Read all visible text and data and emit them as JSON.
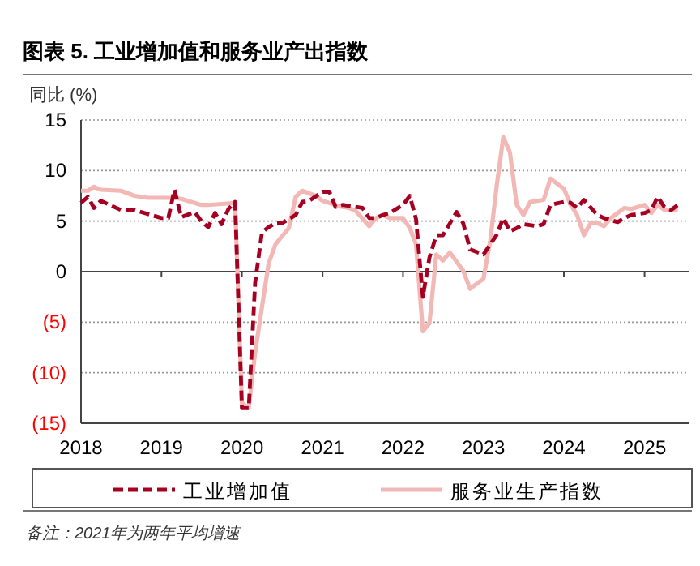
{
  "chart_data": {
    "type": "line",
    "title": "图表 5. 工业增加值和服务业产出指数",
    "ylabel": "同比 (%)",
    "annotations": [
      "备注：2021年为两年平均增速"
    ],
    "xlim": [
      "2018-01-01",
      "2025-07-20"
    ],
    "xticks": [
      {
        "value": "2018-01-01",
        "label": "2018"
      },
      {
        "value": "2019-01-01",
        "label": "2019"
      },
      {
        "value": "2020-01-01",
        "label": "2020"
      },
      {
        "value": "2021-01-01",
        "label": "2021"
      },
      {
        "value": "2022-01-01",
        "label": "2022"
      },
      {
        "value": "2023-01-01",
        "label": "2023"
      },
      {
        "value": "2024-01-01",
        "label": "2024"
      },
      {
        "value": "2025-01-01",
        "label": "2025"
      }
    ],
    "ylim": [
      -15,
      15
    ],
    "yticks": [
      15,
      10,
      5,
      0,
      {
        "value": -5,
        "label": "(5)"
      },
      {
        "value": -10,
        "label": "(10)"
      },
      {
        "value": -15,
        "label": "(15)"
      }
    ],
    "grid": "y",
    "legend": "bottom",
    "series": [
      {
        "name": "工业增加值",
        "color": "#a50021",
        "line_style": "dashed",
        "x": [
          "2018-01",
          "2018-02",
          "2018-03",
          "2018-04",
          "2018-07",
          "2018-09",
          "2018-11",
          "2019-01",
          "2019-02",
          "2019-03",
          "2019-04",
          "2019-06",
          "2019-07",
          "2019-08",
          "2019-09",
          "2019-10",
          "2019-11",
          "2019-12",
          "2020-01",
          "2020-02",
          "2020-03",
          "2020-04",
          "2020-05",
          "2020-06",
          "2020-07",
          "2020-09",
          "2020-10",
          "2020-11",
          "2021-01",
          "2021-02",
          "2021-03",
          "2021-04",
          "2021-06",
          "2021-07",
          "2021-08",
          "2021-09",
          "2021-10",
          "2021-11",
          "2022-01",
          "2022-02",
          "2022-03",
          "2022-04",
          "2022-05",
          "2022-06",
          "2022-07",
          "2022-09",
          "2022-10",
          "2022-11",
          "2023-01",
          "2023-02",
          "2023-03",
          "2023-04",
          "2023-05",
          "2023-06",
          "2023-07",
          "2023-09",
          "2023-10",
          "2023-11",
          "2024-01",
          "2024-02",
          "2024-03",
          "2024-04",
          "2024-06",
          "2024-07",
          "2024-08",
          "2024-09",
          "2024-10",
          "2024-11",
          "2025-01",
          "2025-02",
          "2025-03",
          "2025-04",
          "2025-05",
          "2025-06"
        ],
        "values": [
          6.8,
          7.4,
          6.3,
          7.0,
          6.1,
          6.1,
          5.7,
          5.3,
          5.3,
          8.1,
          5.4,
          5.9,
          5.0,
          4.4,
          5.8,
          4.7,
          6.2,
          6.9,
          -13.5,
          -13.5,
          -1.1,
          3.9,
          4.4,
          4.8,
          4.8,
          5.6,
          6.9,
          7.0,
          7.9,
          7.9,
          6.4,
          6.6,
          6.4,
          6.3,
          5.3,
          5.3,
          5.6,
          5.8,
          6.6,
          7.5,
          5.2,
          -2.5,
          1.4,
          3.6,
          3.6,
          5.9,
          4.8,
          2.2,
          1.7,
          2.7,
          3.6,
          5.3,
          4.0,
          4.3,
          4.7,
          4.5,
          4.7,
          6.6,
          6.9,
          6.8,
          6.3,
          7.1,
          5.6,
          5.3,
          5.1,
          4.9,
          5.3,
          5.6,
          5.8,
          6.1,
          7.4,
          6.4,
          6.1,
          6.6
        ]
      },
      {
        "name": "服务业生产指数",
        "color": "#f2b8b5",
        "line_style": "solid",
        "x": [
          "2018-01",
          "2018-02",
          "2018-03",
          "2018-04",
          "2018-07",
          "2018-09",
          "2018-11",
          "2019-01",
          "2019-03",
          "2019-04",
          "2019-05",
          "2019-07",
          "2019-08",
          "2019-10",
          "2019-12",
          "2020-01",
          "2020-02",
          "2020-03",
          "2020-05",
          "2020-06",
          "2020-07",
          "2020-08",
          "2020-09",
          "2020-10",
          "2020-12",
          "2021-01",
          "2021-02",
          "2021-03",
          "2021-04",
          "2021-05",
          "2021-06",
          "2021-08",
          "2021-09",
          "2021-10",
          "2021-11",
          "2022-01",
          "2022-02",
          "2022-03",
          "2022-04",
          "2022-05",
          "2022-06",
          "2022-07",
          "2022-08",
          "2022-10",
          "2022-11",
          "2023-01",
          "2023-02",
          "2023-03",
          "2023-04",
          "2023-05",
          "2023-06",
          "2023-07",
          "2023-08",
          "2023-10",
          "2023-11",
          "2024-01",
          "2024-02",
          "2024-03",
          "2024-04",
          "2024-05",
          "2024-06",
          "2024-07",
          "2024-08",
          "2024-10",
          "2024-11",
          "2025-01",
          "2025-02",
          "2025-03",
          "2025-04",
          "2025-05",
          "2025-06"
        ],
        "values": [
          8.0,
          8.0,
          8.4,
          8.1,
          8.0,
          7.5,
          7.3,
          7.3,
          7.3,
          7.2,
          7.0,
          6.6,
          6.6,
          6.7,
          6.8,
          -13.0,
          -13.5,
          -8.0,
          0.8,
          2.7,
          3.5,
          4.3,
          7.4,
          8.0,
          7.5,
          7.0,
          6.8,
          6.6,
          6.4,
          6.3,
          6.0,
          4.5,
          5.3,
          5.6,
          5.3,
          5.3,
          4.3,
          2.7,
          -5.9,
          -5.1,
          1.7,
          1.1,
          1.9,
          0.1,
          -1.7,
          -0.7,
          3.1,
          8.3,
          13.3,
          11.8,
          6.6,
          5.6,
          6.9,
          7.1,
          9.2,
          8.2,
          6.6,
          5.6,
          3.6,
          4.8,
          4.8,
          4.5,
          5.3,
          6.3,
          6.2,
          6.6,
          5.8,
          6.6,
          6.1,
          6.1,
          6.1
        ]
      }
    ]
  }
}
